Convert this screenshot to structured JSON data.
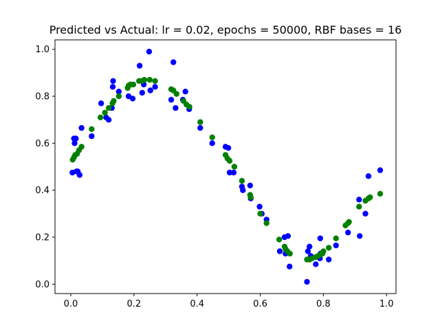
{
  "chart_data": {
    "type": "scatter",
    "title": "Predicted vs Actual: lr = 0.02, epochs = 50000, RBF bases = 16",
    "xlabel": "",
    "ylabel": "",
    "xlim": [
      -0.05,
      1.03
    ],
    "ylim": [
      -0.04,
      1.04
    ],
    "x_ticks": [
      "0.0",
      "0.2",
      "0.4",
      "0.6",
      "0.8",
      "1.0"
    ],
    "y_ticks": [
      "0.0",
      "0.2",
      "0.4",
      "0.6",
      "0.8",
      "1.0"
    ],
    "grid": false,
    "legend": false,
    "series": [
      {
        "color": "#0000ff",
        "points": [
          [
            0.005,
            0.475
          ],
          [
            0.01,
            0.62
          ],
          [
            0.012,
            0.6
          ],
          [
            0.016,
            0.62
          ],
          [
            0.018,
            0.48
          ],
          [
            0.022,
            0.48
          ],
          [
            0.028,
            0.465
          ],
          [
            0.034,
            0.665
          ],
          [
            0.066,
            0.63
          ],
          [
            0.096,
            0.77
          ],
          [
            0.112,
            0.71
          ],
          [
            0.12,
            0.7
          ],
          [
            0.13,
            0.75
          ],
          [
            0.133,
            0.84
          ],
          [
            0.134,
            0.865
          ],
          [
            0.152,
            0.82
          ],
          [
            0.183,
            0.8
          ],
          [
            0.189,
            0.85
          ],
          [
            0.196,
            0.79
          ],
          [
            0.218,
            0.93
          ],
          [
            0.226,
            0.815
          ],
          [
            0.231,
            0.85
          ],
          [
            0.248,
            0.99
          ],
          [
            0.252,
            0.825
          ],
          [
            0.267,
            0.84
          ],
          [
            0.318,
            0.785
          ],
          [
            0.325,
            0.945
          ],
          [
            0.332,
            0.75
          ],
          [
            0.355,
            0.785
          ],
          [
            0.363,
            0.82
          ],
          [
            0.375,
            0.745
          ],
          [
            0.41,
            0.665
          ],
          [
            0.448,
            0.6
          ],
          [
            0.49,
            0.585
          ],
          [
            0.499,
            0.58
          ],
          [
            0.503,
            0.475
          ],
          [
            0.516,
            0.475
          ],
          [
            0.542,
            0.415
          ],
          [
            0.545,
            0.4
          ],
          [
            0.568,
            0.42
          ],
          [
            0.57,
            0.365
          ],
          [
            0.598,
            0.33
          ],
          [
            0.605,
            0.3
          ],
          [
            0.62,
            0.275
          ],
          [
            0.662,
            0.14
          ],
          [
            0.677,
            0.2
          ],
          [
            0.68,
            0.13
          ],
          [
            0.688,
            0.205
          ],
          [
            0.693,
            0.075
          ],
          [
            0.748,
            0.01
          ],
          [
            0.751,
            0.14
          ],
          [
            0.756,
            0.16
          ],
          [
            0.76,
            0.12
          ],
          [
            0.776,
            0.085
          ],
          [
            0.789,
            0.11
          ],
          [
            0.79,
            0.195
          ],
          [
            0.791,
            0.13
          ],
          [
            0.817,
            0.105
          ],
          [
            0.84,
            0.165
          ],
          [
            0.878,
            0.22
          ],
          [
            0.913,
            0.36
          ],
          [
            0.915,
            0.205
          ],
          [
            0.933,
            0.3
          ],
          [
            0.943,
            0.46
          ],
          [
            0.98,
            0.485
          ]
        ]
      },
      {
        "color": "#008000",
        "points": [
          [
            0.006,
            0.53
          ],
          [
            0.01,
            0.54
          ],
          [
            0.014,
            0.55
          ],
          [
            0.02,
            0.555
          ],
          [
            0.026,
            0.57
          ],
          [
            0.034,
            0.585
          ],
          [
            0.066,
            0.66
          ],
          [
            0.094,
            0.71
          ],
          [
            0.108,
            0.73
          ],
          [
            0.12,
            0.75
          ],
          [
            0.132,
            0.77
          ],
          [
            0.136,
            0.78
          ],
          [
            0.152,
            0.8
          ],
          [
            0.18,
            0.835
          ],
          [
            0.183,
            0.845
          ],
          [
            0.19,
            0.85
          ],
          [
            0.198,
            0.85
          ],
          [
            0.216,
            0.865
          ],
          [
            0.225,
            0.865
          ],
          [
            0.233,
            0.87
          ],
          [
            0.25,
            0.87
          ],
          [
            0.267,
            0.865
          ],
          [
            0.318,
            0.83
          ],
          [
            0.325,
            0.825
          ],
          [
            0.335,
            0.81
          ],
          [
            0.357,
            0.78
          ],
          [
            0.366,
            0.765
          ],
          [
            0.376,
            0.755
          ],
          [
            0.41,
            0.69
          ],
          [
            0.448,
            0.625
          ],
          [
            0.49,
            0.55
          ],
          [
            0.496,
            0.535
          ],
          [
            0.503,
            0.525
          ],
          [
            0.518,
            0.5
          ],
          [
            0.542,
            0.44
          ],
          [
            0.568,
            0.38
          ],
          [
            0.57,
            0.37
          ],
          [
            0.6,
            0.3
          ],
          [
            0.62,
            0.26
          ],
          [
            0.66,
            0.19
          ],
          [
            0.677,
            0.16
          ],
          [
            0.68,
            0.15
          ],
          [
            0.686,
            0.14
          ],
          [
            0.694,
            0.13
          ],
          [
            0.748,
            0.105
          ],
          [
            0.756,
            0.105
          ],
          [
            0.764,
            0.11
          ],
          [
            0.776,
            0.115
          ],
          [
            0.783,
            0.12
          ],
          [
            0.79,
            0.125
          ],
          [
            0.797,
            0.13
          ],
          [
            0.8,
            0.14
          ],
          [
            0.817,
            0.155
          ],
          [
            0.84,
            0.195
          ],
          [
            0.87,
            0.25
          ],
          [
            0.878,
            0.26
          ],
          [
            0.881,
            0.265
          ],
          [
            0.913,
            0.33
          ],
          [
            0.933,
            0.355
          ],
          [
            0.943,
            0.365
          ],
          [
            0.948,
            0.37
          ],
          [
            0.98,
            0.385
          ]
        ]
      }
    ]
  }
}
